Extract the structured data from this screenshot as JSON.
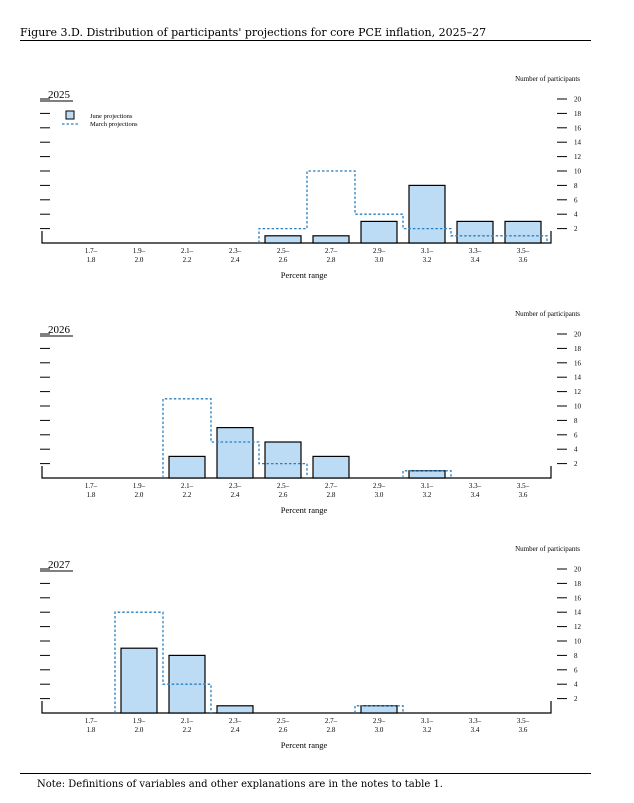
{
  "figure_title": "Figure 3.D. Distribution of participants' projections for core PCE inflation, 2025–27",
  "note": {
    "label": "Note:",
    "text": "Definitions of variables and other explanations are in the notes to table 1."
  },
  "colors": {
    "june_fill": "#bcdcf6",
    "march_line": "#2a7fc0",
    "axis": "#000000"
  },
  "chart_data": [
    {
      "type": "bar",
      "panel_label": "2025",
      "categories": [
        "1.7–\n1.8",
        "1.9–\n2.0",
        "2.1–\n2.2",
        "2.3–\n2.4",
        "2.5–\n2.6",
        "2.7–\n2.8",
        "2.9–\n3.0",
        "3.1–\n3.2",
        "3.3–\n3.4",
        "3.5–\n3.6"
      ],
      "series": [
        {
          "name": "June projections",
          "style": "filled bars",
          "values": [
            0,
            0,
            0,
            0,
            1,
            1,
            3,
            8,
            3,
            3
          ]
        },
        {
          "name": "March projections",
          "style": "dashed outline",
          "values": [
            0,
            0,
            0,
            0,
            2,
            10,
            4,
            2,
            1,
            1
          ]
        }
      ],
      "xlabel": "Percent range",
      "ylabel": "Number of participants",
      "yticks": [
        2,
        4,
        6,
        8,
        10,
        12,
        14,
        16,
        18,
        20
      ],
      "ylim": [
        0,
        20
      ],
      "legend": "top-left"
    },
    {
      "type": "bar",
      "panel_label": "2026",
      "categories": [
        "1.7–\n1.8",
        "1.9–\n2.0",
        "2.1–\n2.2",
        "2.3–\n2.4",
        "2.5–\n2.6",
        "2.7–\n2.8",
        "2.9–\n3.0",
        "3.1–\n3.2",
        "3.3–\n3.4",
        "3.5–\n3.6"
      ],
      "series": [
        {
          "name": "June projections",
          "style": "filled bars",
          "values": [
            0,
            0,
            3,
            7,
            5,
            3,
            0,
            1,
            0,
            0
          ]
        },
        {
          "name": "March projections",
          "style": "dashed outline",
          "values": [
            0,
            0,
            11,
            5,
            2,
            0,
            0,
            1,
            0,
            0
          ]
        }
      ],
      "xlabel": "Percent range",
      "ylabel": "Number of participants",
      "yticks": [
        2,
        4,
        6,
        8,
        10,
        12,
        14,
        16,
        18,
        20
      ],
      "ylim": [
        0,
        20
      ]
    },
    {
      "type": "bar",
      "panel_label": "2027",
      "categories": [
        "1.7–\n1.8",
        "1.9–\n2.0",
        "2.1–\n2.2",
        "2.3–\n2.4",
        "2.5–\n2.6",
        "2.7–\n2.8",
        "2.9–\n3.0",
        "3.1–\n3.2",
        "3.3–\n3.4",
        "3.5–\n3.6"
      ],
      "series": [
        {
          "name": "June projections",
          "style": "filled bars",
          "values": [
            0,
            9,
            8,
            1,
            0,
            0,
            1,
            0,
            0,
            0
          ]
        },
        {
          "name": "March projections",
          "style": "dashed outline",
          "values": [
            0,
            14,
            4,
            0,
            0,
            0,
            1,
            0,
            0,
            0
          ]
        }
      ],
      "xlabel": "Percent range",
      "ylabel": "Number of participants",
      "yticks": [
        2,
        4,
        6,
        8,
        10,
        12,
        14,
        16,
        18,
        20
      ],
      "ylim": [
        0,
        20
      ]
    }
  ]
}
